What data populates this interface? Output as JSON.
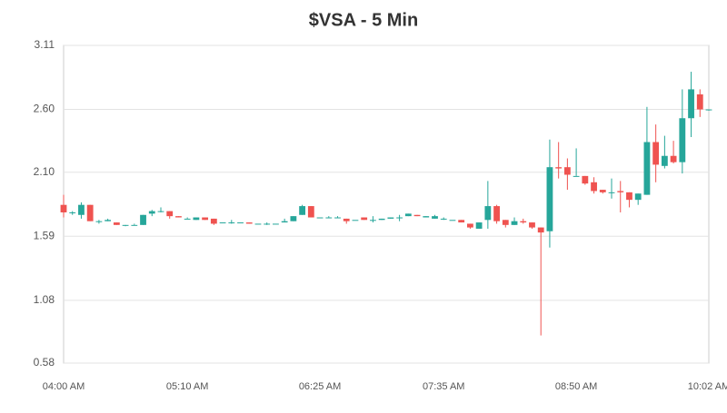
{
  "chart_data": {
    "type": "candlestick",
    "title": "$VSA - 5 Min",
    "categories": [
      "04:00 AM",
      null,
      null,
      null,
      null,
      null,
      null,
      null,
      null,
      null,
      null,
      null,
      null,
      null,
      "05:10 AM",
      null,
      null,
      null,
      null,
      null,
      null,
      null,
      null,
      null,
      null,
      null,
      null,
      null,
      null,
      "06:25 AM",
      null,
      null,
      null,
      null,
      null,
      null,
      null,
      null,
      null,
      null,
      null,
      null,
      null,
      "07:35 AM",
      null,
      null,
      null,
      null,
      null,
      null,
      null,
      null,
      null,
      null,
      null,
      null,
      null,
      null,
      "08:50 AM",
      null,
      null,
      null,
      null,
      null,
      null,
      null,
      null,
      null,
      null,
      null,
      null,
      null,
      null,
      "10:02 AM"
    ],
    "open": [
      1.84,
      1.78,
      1.76,
      1.84,
      1.71,
      1.71,
      1.7,
      1.68,
      1.68,
      1.68,
      1.77,
      1.79,
      1.79,
      1.75,
      1.73,
      1.72,
      1.74,
      1.73,
      1.7,
      1.7,
      1.7,
      1.7,
      1.69,
      1.69,
      1.69,
      1.7,
      1.71,
      1.76,
      1.83,
      1.74,
      1.74,
      1.74,
      1.73,
      1.72,
      1.74,
      1.72,
      1.72,
      1.73,
      1.74,
      1.75,
      1.76,
      1.74,
      1.73,
      1.73,
      1.72,
      1.72,
      1.69,
      1.65,
      1.72,
      1.83,
      1.72,
      1.68,
      1.71,
      1.7,
      1.66,
      1.63,
      2.14,
      2.14,
      2.07,
      2.07,
      2.02,
      1.96,
      1.94,
      1.95,
      1.94,
      1.88,
      1.92,
      2.34,
      2.15,
      2.23,
      2.18,
      2.53,
      2.72,
      2.6
    ],
    "high": [
      1.92,
      1.79,
      1.86,
      1.84,
      1.72,
      1.73,
      1.7,
      1.68,
      1.69,
      1.76,
      1.8,
      1.82,
      1.79,
      1.75,
      1.74,
      1.74,
      1.74,
      1.73,
      1.7,
      1.72,
      1.7,
      1.7,
      1.69,
      1.7,
      1.69,
      1.73,
      1.75,
      1.84,
      1.83,
      1.74,
      1.75,
      1.75,
      1.73,
      1.72,
      1.74,
      1.75,
      1.73,
      1.74,
      1.76,
      1.77,
      1.76,
      1.75,
      1.76,
      1.74,
      1.72,
      1.72,
      1.69,
      1.7,
      2.03,
      1.84,
      1.72,
      1.74,
      1.73,
      1.7,
      1.66,
      2.36,
      2.34,
      2.21,
      2.29,
      2.07,
      2.06,
      1.96,
      2.05,
      2.03,
      1.94,
      1.93,
      2.62,
      2.48,
      2.39,
      2.35,
      2.76,
      2.9,
      2.76,
      2.6
    ],
    "low": [
      1.74,
      1.76,
      1.73,
      1.71,
      1.69,
      1.71,
      1.68,
      1.67,
      1.68,
      1.68,
      1.75,
      1.78,
      1.73,
      1.74,
      1.73,
      1.72,
      1.72,
      1.68,
      1.7,
      1.69,
      1.7,
      1.69,
      1.69,
      1.68,
      1.69,
      1.7,
      1.71,
      1.76,
      1.74,
      1.74,
      1.74,
      1.74,
      1.69,
      1.72,
      1.72,
      1.7,
      1.72,
      1.73,
      1.71,
      1.75,
      1.75,
      1.74,
      1.73,
      1.72,
      1.72,
      1.7,
      1.65,
      1.65,
      1.65,
      1.69,
      1.66,
      1.68,
      1.69,
      1.65,
      0.8,
      1.5,
      2.05,
      1.96,
      2.07,
      2.0,
      1.93,
      1.93,
      1.89,
      1.78,
      1.82,
      1.84,
      1.92,
      2.02,
      2.13,
      2.17,
      2.09,
      2.38,
      2.54,
      2.59
    ],
    "close": [
      1.78,
      1.78,
      1.84,
      1.71,
      1.71,
      1.72,
      1.68,
      1.68,
      1.68,
      1.76,
      1.79,
      1.79,
      1.75,
      1.74,
      1.73,
      1.74,
      1.72,
      1.69,
      1.7,
      1.7,
      1.7,
      1.69,
      1.69,
      1.69,
      1.69,
      1.71,
      1.75,
      1.83,
      1.74,
      1.74,
      1.74,
      1.74,
      1.71,
      1.72,
      1.72,
      1.72,
      1.73,
      1.74,
      1.74,
      1.77,
      1.75,
      1.75,
      1.75,
      1.73,
      1.72,
      1.7,
      1.66,
      1.7,
      1.83,
      1.71,
      1.68,
      1.71,
      1.7,
      1.66,
      1.62,
      2.14,
      2.13,
      2.08,
      2.07,
      2.01,
      1.95,
      1.94,
      1.94,
      1.94,
      1.88,
      1.93,
      2.34,
      2.16,
      2.23,
      2.18,
      2.53,
      2.76,
      2.6,
      2.6
    ],
    "up_color": "#26a69a",
    "down_color": "#ef5350",
    "ylim": [
      0.58,
      3.11
    ],
    "yticks": [
      0.58,
      1.08,
      1.59,
      {
        "value": 2.1,
        "label": "2.10"
      },
      {
        "value": 2.6,
        "label": "2.60"
      },
      3.11
    ],
    "grid": true
  }
}
